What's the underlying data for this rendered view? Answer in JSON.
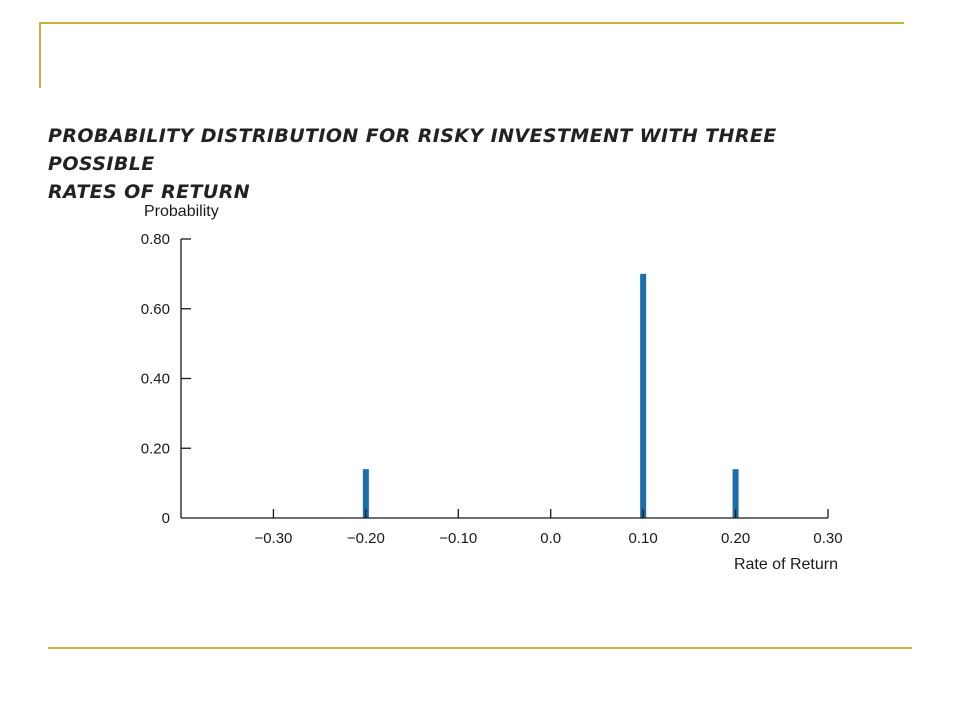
{
  "chart_data": {
    "type": "bar",
    "title_lines": [
      "PROBABILITY DISTRIBUTION FOR RISKY INVESTMENT WITH THREE POSSIBLE",
      "RATES OF RETURN"
    ],
    "xlabel": "Rate of Return",
    "ylabel": "Probability",
    "x": [
      -0.2,
      0.1,
      0.2
    ],
    "values": [
      0.14,
      0.7,
      0.14
    ],
    "xlim": [
      -0.4,
      0.3
    ],
    "ylim": [
      0,
      0.8
    ],
    "x_ticks": [
      -0.3,
      -0.2,
      -0.1,
      0.0,
      0.1,
      0.2,
      0.3
    ],
    "x_tick_labels": [
      "−0.30",
      "−0.20",
      "−0.10",
      "0.0",
      "0.10",
      "0.20",
      "0.30"
    ],
    "y_ticks": [
      0,
      0.2,
      0.4,
      0.6,
      0.8
    ],
    "y_tick_labels": [
      "0",
      "0.20",
      "0.40",
      "0.60",
      "0.80"
    ],
    "bar_color": "#1a6fa8",
    "axis_color": "#1a1a1a",
    "grid": false
  },
  "slide_accent_color": "#c8b23a"
}
